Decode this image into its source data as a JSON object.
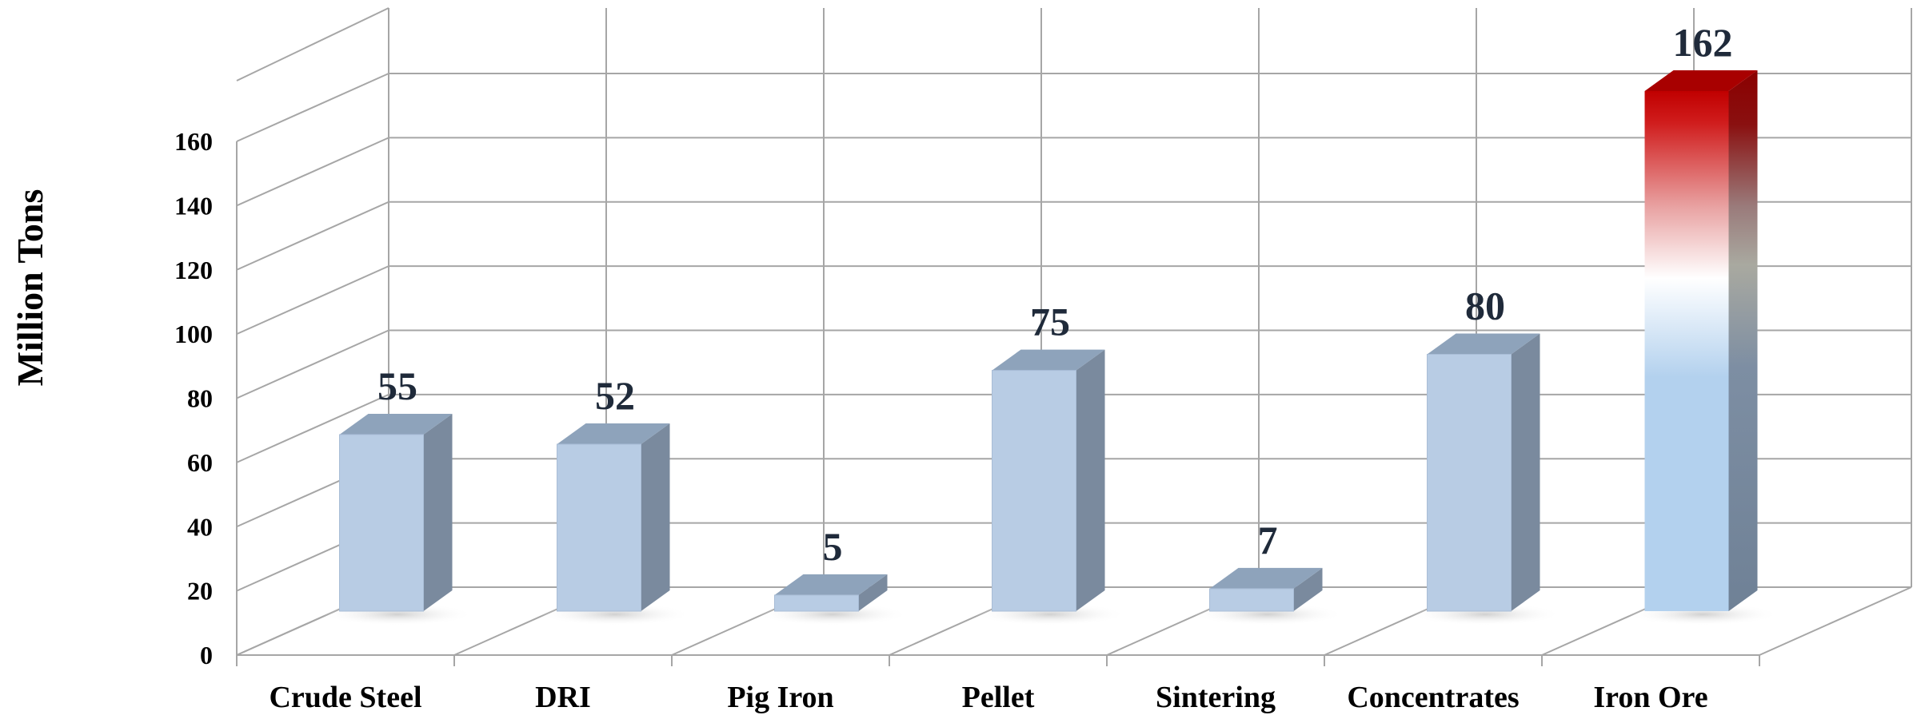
{
  "chart_data": {
    "type": "bar",
    "style": "3d-column",
    "title": "",
    "xlabel": "",
    "ylabel": "Million Tons",
    "categories": [
      "Crude Steel",
      "DRI",
      "Pig Iron",
      "Pellet",
      "Sintering",
      "Concentrates",
      "Iron Ore"
    ],
    "values": [
      55,
      52,
      5,
      75,
      7,
      80,
      162
    ],
    "value_labels": [
      "55",
      "52",
      "5",
      "75",
      "7",
      "80",
      "162"
    ],
    "ylim": [
      0,
      160
    ],
    "yticks": [
      0,
      20,
      40,
      60,
      80,
      100,
      120,
      140,
      160
    ],
    "ytick_labels": [
      "0",
      "20",
      "40",
      "60",
      "80",
      "100",
      "120",
      "140",
      "160"
    ],
    "grid": true,
    "legend": "none",
    "colors": {
      "bar_front": "#b8cce4",
      "bar_side": "#7a8a9e",
      "bar_top": "#8ea3bb",
      "highlight_top": "#c00000",
      "highlight_bottom": "#b3d1ee",
      "grid": "#a6a6a6",
      "value_label": "#1f2a3a"
    },
    "highlight_index": 6
  }
}
